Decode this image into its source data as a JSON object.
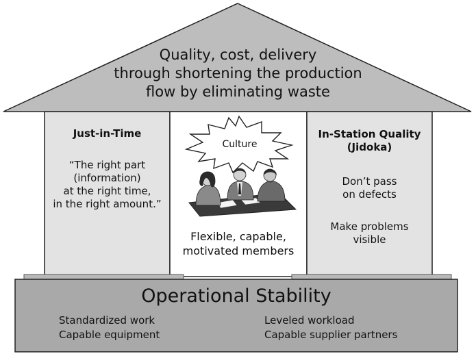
{
  "roof": {
    "lines": [
      "Quality, cost, delivery",
      "through shortening the production",
      "flow by eliminating waste"
    ]
  },
  "left_pillar": {
    "title": "Just-in-Time",
    "lines": [
      "“The right part",
      "(information)",
      "at the right time,",
      "in the right amount.”"
    ]
  },
  "center": {
    "burst_label": "Culture",
    "caption_lines": [
      "Flexible, capable,",
      "motivated members"
    ]
  },
  "right_pillar": {
    "title_lines": [
      "In-Station Quality",
      "(Jidoka)"
    ],
    "item1_lines": [
      "Don’t pass",
      "on defects"
    ],
    "item2_lines": [
      "Make problems",
      "visible"
    ]
  },
  "base": {
    "title": "Operational Stability",
    "left_items": [
      "Standardized work",
      "Capable equipment"
    ],
    "right_items": [
      "Leveled workload",
      "Capable supplier partners"
    ]
  },
  "colors": {
    "roof_fill": "#bdbdbd",
    "pillar_fill": "#e3e3e3",
    "base_fill": "#a9a9a9",
    "outline": "#222222"
  }
}
